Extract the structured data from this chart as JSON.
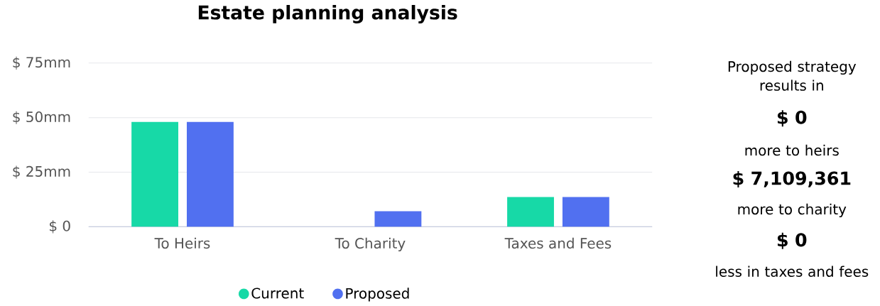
{
  "chart_data": {
    "type": "bar",
    "title": "Estate planning analysis",
    "categories": [
      "To Heirs",
      "To Charity",
      "Taxes and Fees"
    ],
    "series": [
      {
        "name": "Current",
        "color": "#17d9a7",
        "values": [
          48,
          0,
          13.6
        ]
      },
      {
        "name": "Proposed",
        "color": "#5170f0",
        "values": [
          48,
          7.1,
          13.6
        ]
      }
    ],
    "ylim": [
      0,
      75
    ],
    "yticks": [
      {
        "value": 0,
        "label": "$ 0"
      },
      {
        "value": 25,
        "label": "$ 25mm"
      },
      {
        "value": 50,
        "label": "$ 50mm"
      },
      {
        "value": 75,
        "label": "$ 75mm"
      }
    ],
    "grid": "y",
    "legend": "bottom",
    "annotations": [
      "Proposed strategy results in",
      "$ 0",
      "more to heirs",
      "$ 7,109,361",
      "more to charity",
      "$ 0",
      "less in taxes and fees"
    ]
  }
}
